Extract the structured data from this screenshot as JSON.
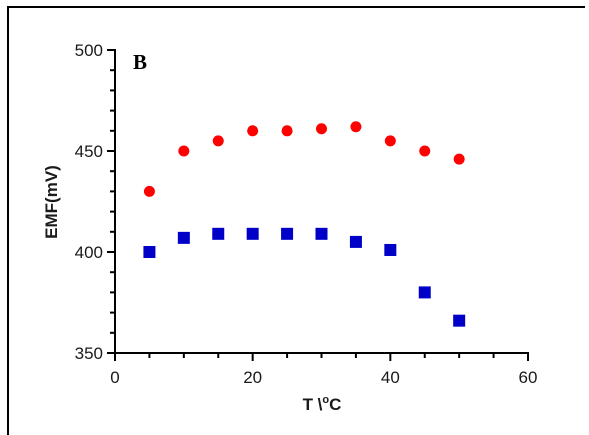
{
  "chart_data": {
    "type": "scatter",
    "panel_label": "B",
    "title": "",
    "xlabel": "T \\",
    "xlabel_superscript": "o",
    "xlabel_suffix": "C",
    "ylabel": "EMF(mV)",
    "xlim": [
      0,
      60
    ],
    "ylim": [
      350,
      500
    ],
    "x_ticks": [
      "0",
      "20",
      "40",
      "60"
    ],
    "y_ticks": [
      "350",
      "400",
      "450",
      "500"
    ],
    "grid": false,
    "legend": "none",
    "series": [
      {
        "marker": "circle",
        "color": "#ff0000",
        "x": [
          5,
          10,
          15,
          20,
          25,
          30,
          35,
          40,
          45,
          50
        ],
        "y": [
          430,
          450,
          455,
          460,
          460,
          461,
          462,
          455,
          450,
          446
        ]
      },
      {
        "marker": "square",
        "color": "#0000c8",
        "x": [
          5,
          10,
          15,
          20,
          25,
          30,
          35,
          40,
          45,
          50
        ],
        "y": [
          400,
          407,
          409,
          409,
          409,
          409,
          405,
          401,
          380,
          366
        ]
      }
    ]
  }
}
